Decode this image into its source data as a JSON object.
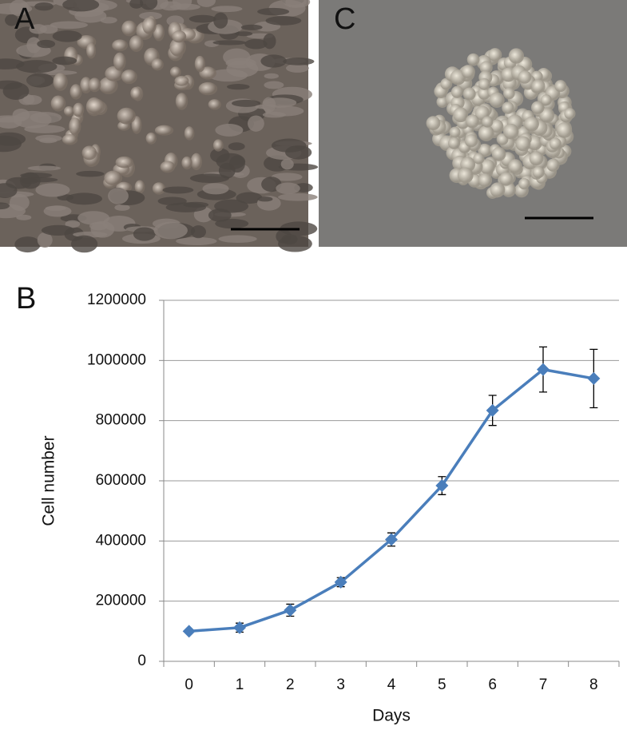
{
  "panels": [
    {
      "label": "A"
    },
    {
      "label": "C"
    }
  ],
  "chart_data": {
    "type": "line",
    "panel_label": "B",
    "x_label": "Days",
    "y_label": "Cell number",
    "categories": [
      "0",
      "1",
      "2",
      "3",
      "4",
      "5",
      "6",
      "7",
      "8"
    ],
    "values": [
      100000,
      112000,
      170000,
      263000,
      405000,
      584000,
      834000,
      970000,
      940000
    ],
    "errors": [
      5000,
      15000,
      20000,
      15000,
      22000,
      30000,
      50000,
      75000,
      97000
    ],
    "color": "#4a7ebb",
    "ylim": [
      0,
      1200000
    ],
    "yticks": [
      0,
      200000,
      400000,
      600000,
      800000,
      1000000,
      1200000
    ],
    "grid": true
  }
}
